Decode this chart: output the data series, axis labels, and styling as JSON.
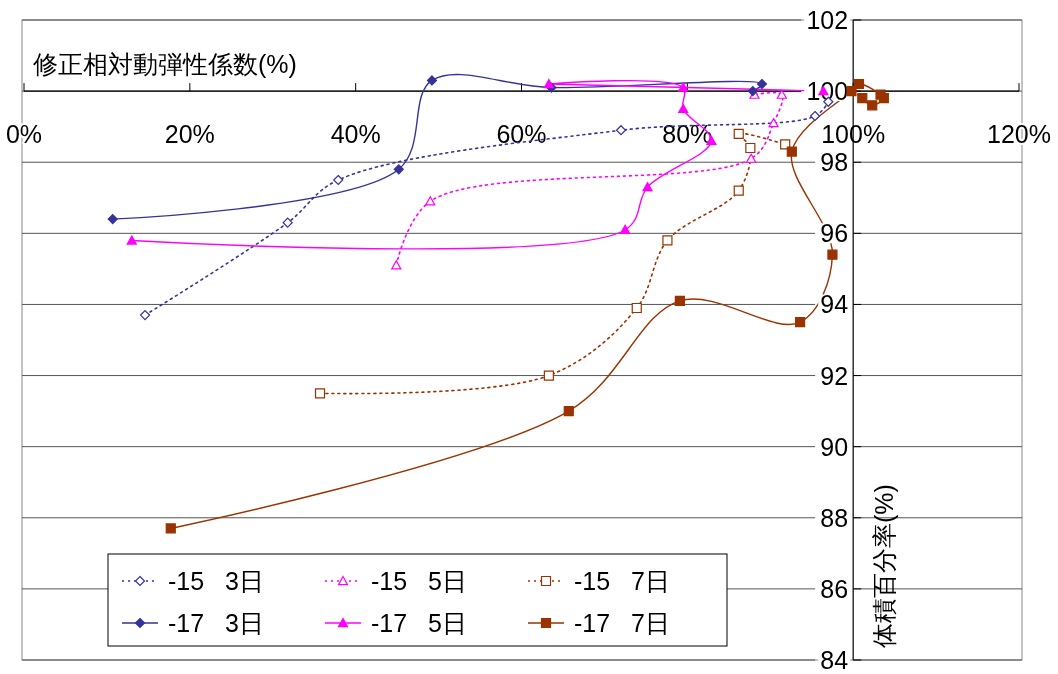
{
  "chart_data": {
    "type": "line",
    "xlabel": "修正相対動弾性係数(%)",
    "ylabel": "体積百分率(%)",
    "xlim": [
      0,
      120
    ],
    "xticks": [
      {
        "value": 0,
        "label": "0%"
      },
      {
        "value": 20,
        "label": "20%"
      },
      {
        "value": 40,
        "label": "40%"
      },
      {
        "value": 60,
        "label": "60%"
      },
      {
        "value": 80,
        "label": "80%"
      },
      {
        "value": 100,
        "label": "100%"
      },
      {
        "value": 120,
        "label": "120%"
      }
    ],
    "ylim": [
      84,
      102
    ],
    "yticks": [
      84,
      86,
      88,
      90,
      92,
      94,
      96,
      98,
      100,
      102
    ],
    "grid": "y",
    "legend": "bottom left",
    "series": [
      {
        "name": "-15   3日",
        "color": "#333399",
        "line_style": "dotted",
        "marker": "diamond",
        "x": [
          14.6,
          31.8,
          37.9,
          72.0,
          95.4,
          97.0
        ],
        "values": [
          93.7,
          96.3,
          97.5,
          98.9,
          99.3,
          99.7
        ]
      },
      {
        "name": "-15   5日",
        "color": "#ff00ff",
        "line_style": "dotted",
        "marker": "triangle",
        "x": [
          44.9,
          49.0,
          87.7,
          90.4,
          91.4,
          88.1
        ],
        "values": [
          95.1,
          96.9,
          98.1,
          99.1,
          99.9,
          99.9
        ]
      },
      {
        "name": "-15   7日",
        "color": "#993300",
        "line_style": "dotted",
        "marker": "square",
        "x": [
          35.7,
          63.3,
          73.9,
          77.6,
          86.2,
          87.6,
          86.2,
          91.8
        ],
        "values": [
          91.5,
          92.0,
          93.9,
          95.8,
          97.2,
          98.4,
          98.8,
          98.5
        ]
      },
      {
        "name": "-17   3日",
        "color": "#333399",
        "line_style": "solid",
        "marker": "diamond",
        "x": [
          10.7,
          45.2,
          49.2,
          63.6,
          89.0,
          87.9
        ],
        "values": [
          96.4,
          97.8,
          100.3,
          100.1,
          100.2,
          100.0
        ]
      },
      {
        "name": "-17   5日",
        "color": "#ff00ff",
        "line_style": "solid",
        "marker": "triangle",
        "x": [
          13.0,
          72.5,
          75.2,
          82.9,
          79.5,
          79.5,
          63.3,
          96.4
        ],
        "values": [
          95.8,
          96.1,
          97.3,
          98.6,
          99.5,
          100.1,
          100.2,
          100.0
        ]
      },
      {
        "name": "-17   7日",
        "color": "#993300",
        "line_style": "solid",
        "marker": "square",
        "x": [
          17.7,
          65.7,
          79.1,
          93.6,
          97.5,
          92.6,
          99.8,
          100.7,
          103.3,
          103.7,
          102.3,
          101.1
        ],
        "values": [
          87.7,
          91.0,
          94.1,
          93.5,
          95.4,
          98.3,
          100.0,
          100.2,
          99.9,
          99.8,
          99.6,
          99.8
        ]
      }
    ]
  }
}
